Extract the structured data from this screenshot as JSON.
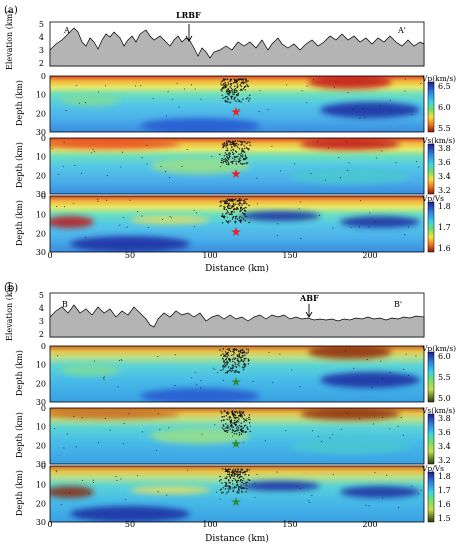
{
  "figure": {
    "panels": [
      {
        "label": "(a)",
        "profile_start": "A",
        "profile_end": "A'",
        "fault_label": "LRBF",
        "elevation_ylabel": "Elevation (km)",
        "elevation_ticks": [
          "5",
          "4",
          "3",
          "2"
        ],
        "depth_ylabel": "Depth (km)",
        "depth_ticks": [
          "0",
          "10",
          "20",
          "30"
        ],
        "maps": [
          {
            "unit": "Vp(km/s)",
            "cbar_ticks": [
              "6.5",
              "6.0",
              "5.5"
            ]
          },
          {
            "unit": "Vs(km/s)",
            "cbar_ticks": [
              "3.8",
              "3.6",
              "3.4",
              "3.2"
            ]
          },
          {
            "unit": "Vp/Vs",
            "cbar_ticks": [
              "1.8",
              "1.7",
              "1.6"
            ]
          }
        ],
        "x_ticks": [
          "0",
          "50",
          "100",
          "150",
          "200"
        ],
        "xlabel": "Distance (km)"
      },
      {
        "label": "(b)",
        "profile_start": "B",
        "profile_end": "B'",
        "fault_label": "ABF",
        "elevation_ylabel": "Elevation (km)",
        "elevation_ticks": [
          "5",
          "4",
          "3",
          "2"
        ],
        "depth_ylabel": "Depth (km)",
        "depth_ticks": [
          "0",
          "10",
          "20",
          "30"
        ],
        "maps": [
          {
            "unit": "Vp(km/s)",
            "cbar_ticks": [
              "6.0",
              "5.5",
              "5.0"
            ]
          },
          {
            "unit": "Vs(km/s)",
            "cbar_ticks": [
              "3.8",
              "3.6",
              "3.4",
              "3.2"
            ]
          },
          {
            "unit": "Vp/Vs",
            "cbar_ticks": [
              "1.8",
              "1.7",
              "1.6",
              "1.5"
            ]
          }
        ],
        "x_ticks": [
          "0",
          "50",
          "100",
          "150",
          "200"
        ],
        "xlabel": "Distance (km)"
      }
    ],
    "colors": {
      "terrain_fill": "#b4b4b4",
      "star_a": "#e8202a",
      "star_b": "#2e8b3a",
      "eq_dots": "#111111"
    }
  }
}
